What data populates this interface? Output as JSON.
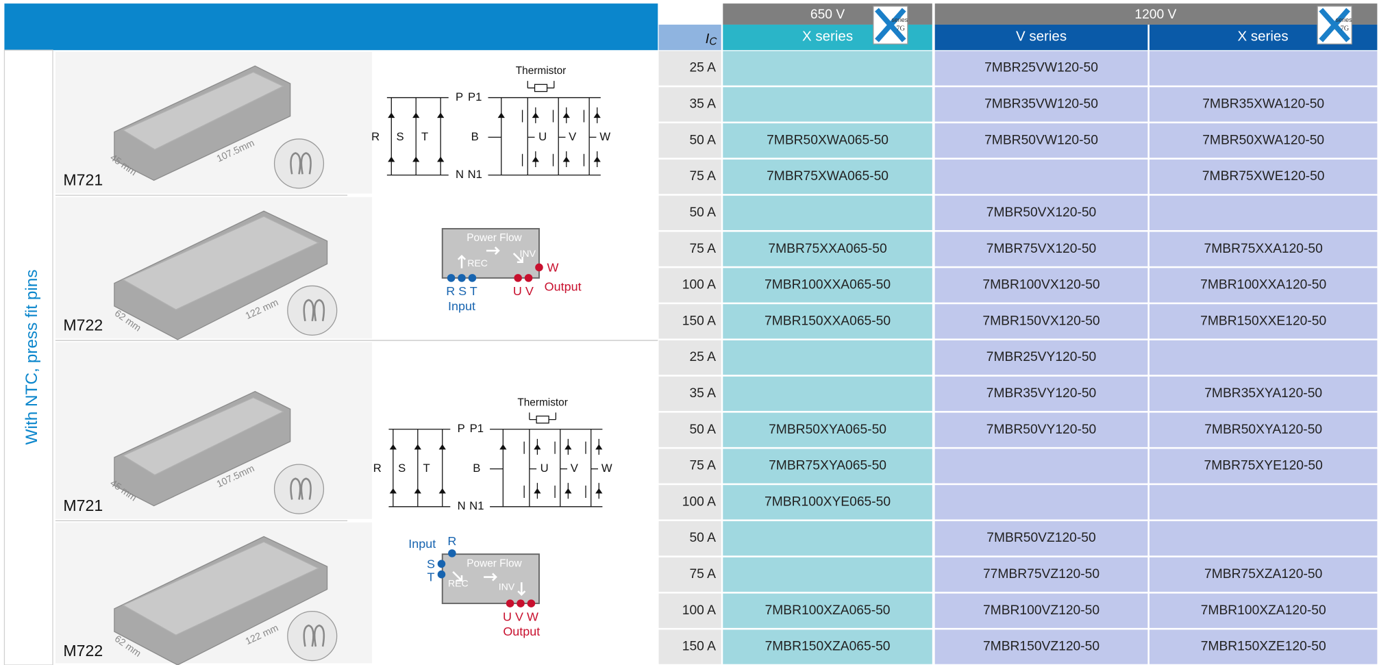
{
  "header": {
    "voltage_650": "650 V",
    "voltage_1200": "1200 V",
    "ic_symbol": "I",
    "ic_subscript": "C",
    "series": [
      "X series",
      "V series",
      "X series"
    ],
    "badge": {
      "word": "series",
      "generation": "7G"
    }
  },
  "side_label": "With NTC, press fit pins",
  "groups": [
    {
      "package": "M721",
      "dimensions": [
        "45 mm",
        "107.5mm"
      ],
      "diagram": {
        "thermistor": "Thermistor",
        "terminals": [
          "P",
          "N",
          "R",
          "S",
          "T",
          "P1",
          "B",
          "N1",
          "U",
          "V",
          "W"
        ]
      }
    },
    {
      "package": "M722",
      "dimensions": [
        "62 mm",
        "122 mm"
      ],
      "power_flow": {
        "title": "Power Flow",
        "rec": "REC",
        "inv": "INV",
        "input_pins": "R S T",
        "input": "Input",
        "output_pins": "U V",
        "output_extra": "W",
        "output": "Output"
      }
    },
    {
      "package": "M721",
      "dimensions": [
        "45 mm",
        "107.5mm"
      ],
      "diagram": {
        "thermistor": "Thermistor",
        "terminals": [
          "P",
          "N",
          "R",
          "S",
          "T",
          "P1",
          "B",
          "N1",
          "U",
          "V",
          "W"
        ]
      }
    },
    {
      "package": "M722",
      "dimensions": [
        "62 mm",
        "122 mm"
      ],
      "power_flow": {
        "title": "Power Flow",
        "rec": "REC",
        "inv": "INV",
        "input": "Input",
        "input_pins": [
          "R",
          "S",
          "T"
        ],
        "output_pins": "U V W",
        "output": "Output"
      }
    }
  ],
  "table": {
    "rows": [
      [
        "25 A",
        null,
        "7MBR25VW120-50",
        null
      ],
      [
        "35 A",
        null,
        "7MBR35VW120-50",
        "7MBR35XWA120-50"
      ],
      [
        "50 A",
        "7MBR50XWA065-50",
        "7MBR50VW120-50",
        "7MBR50XWA120-50"
      ],
      [
        "75 A",
        "7MBR75XWA065-50",
        null,
        "7MBR75XWE120-50"
      ],
      [
        "50 A",
        null,
        "7MBR50VX120-50",
        null
      ],
      [
        "75 A",
        "7MBR75XXA065-50",
        "7MBR75VX120-50",
        "7MBR75XXA120-50"
      ],
      [
        "100 A",
        "7MBR100XXA065-50",
        "7MBR100VX120-50",
        "7MBR100XXA120-50"
      ],
      [
        "150 A",
        "7MBR150XXA065-50",
        "7MBR150VX120-50",
        "7MBR150XXE120-50"
      ],
      [
        "25 A",
        null,
        "7MBR25VY120-50",
        null
      ],
      [
        "35 A",
        null,
        "7MBR35VY120-50",
        "7MBR35XYA120-50"
      ],
      [
        "50 A",
        "7MBR50XYA065-50",
        "7MBR50VY120-50",
        "7MBR50XYA120-50"
      ],
      [
        "75 A",
        "7MBR75XYA065-50",
        null,
        "7MBR75XYE120-50"
      ],
      [
        "100 A",
        "7MBR100XYE065-50",
        null,
        null
      ],
      [
        "50 A",
        null,
        "7MBR50VZ120-50",
        null
      ],
      [
        "75 A",
        null,
        "77MBR75VZ120-50",
        "7MBR75XZA120-50"
      ],
      [
        "100 A",
        "7MBR100XZA065-50",
        "7MBR100VZ120-50",
        "7MBR100XZA120-50"
      ],
      [
        "150 A",
        "7MBR150XZA065-50",
        "7MBR150VZ120-50",
        "7MBR150XZE120-50"
      ]
    ]
  }
}
